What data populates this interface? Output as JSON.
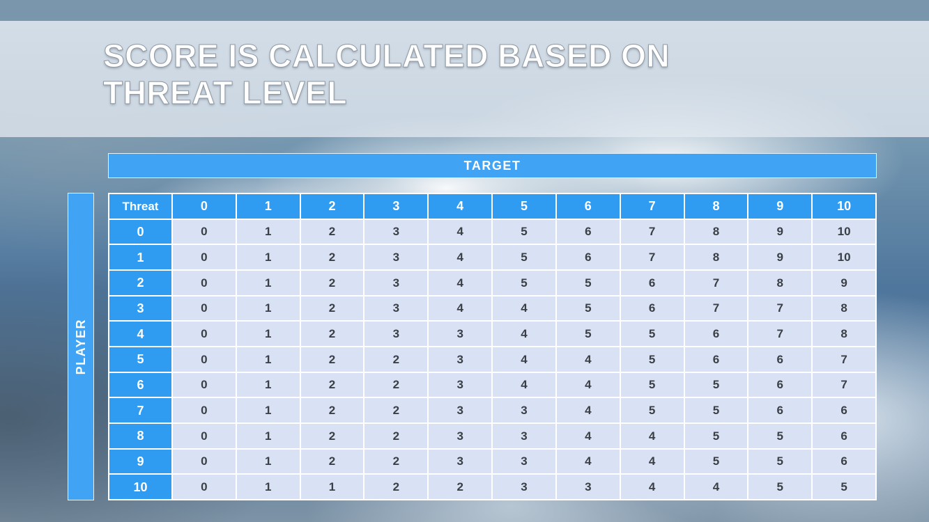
{
  "slide": {
    "title_line1": "SCORE IS CALCULATED BASED ON",
    "title_line2": "THREAT LEVEL"
  },
  "matrix": {
    "target_label": "TARGET",
    "player_label": "PLAYER",
    "corner_label": "Threat",
    "column_headers": [
      "0",
      "1",
      "2",
      "3",
      "4",
      "5",
      "6",
      "7",
      "8",
      "9",
      "10"
    ],
    "rows": [
      {
        "header": "0",
        "values": [
          "0",
          "1",
          "2",
          "3",
          "4",
          "5",
          "6",
          "7",
          "8",
          "9",
          "10"
        ]
      },
      {
        "header": "1",
        "values": [
          "0",
          "1",
          "2",
          "3",
          "4",
          "5",
          "6",
          "7",
          "8",
          "9",
          "10"
        ]
      },
      {
        "header": "2",
        "values": [
          "0",
          "1",
          "2",
          "3",
          "4",
          "5",
          "5",
          "6",
          "7",
          "8",
          "9"
        ]
      },
      {
        "header": "3",
        "values": [
          "0",
          "1",
          "2",
          "3",
          "4",
          "4",
          "5",
          "6",
          "7",
          "7",
          "8"
        ]
      },
      {
        "header": "4",
        "values": [
          "0",
          "1",
          "2",
          "3",
          "3",
          "4",
          "5",
          "5",
          "6",
          "7",
          "8"
        ]
      },
      {
        "header": "5",
        "values": [
          "0",
          "1",
          "2",
          "2",
          "3",
          "4",
          "4",
          "5",
          "6",
          "6",
          "7"
        ]
      },
      {
        "header": "6",
        "values": [
          "0",
          "1",
          "2",
          "2",
          "3",
          "4",
          "4",
          "5",
          "5",
          "6",
          "7"
        ]
      },
      {
        "header": "7",
        "values": [
          "0",
          "1",
          "2",
          "2",
          "3",
          "3",
          "4",
          "5",
          "5",
          "6",
          "6"
        ]
      },
      {
        "header": "8",
        "values": [
          "0",
          "1",
          "2",
          "2",
          "3",
          "3",
          "4",
          "4",
          "5",
          "5",
          "6"
        ]
      },
      {
        "header": "9",
        "values": [
          "0",
          "1",
          "2",
          "2",
          "3",
          "3",
          "4",
          "4",
          "5",
          "5",
          "6"
        ]
      },
      {
        "header": "10",
        "values": [
          "0",
          "1",
          "1",
          "2",
          "2",
          "3",
          "3",
          "4",
          "4",
          "5",
          "5"
        ]
      }
    ]
  },
  "colors": {
    "accent_blue": "#2f9bf1",
    "target_bar_blue": "#41a3f3",
    "cell_bg": "#d9e2f4",
    "cell_text": "#3a3f46",
    "top_strip": "#7a96ac",
    "title_band": "rgba(226,232,239,0.78)",
    "grid_gap": "#ffffff"
  },
  "chart_data": {
    "type": "table",
    "title": "SCORE IS CALCULATED BASED ON THREAT LEVEL",
    "x_axis_label": "TARGET",
    "y_axis_label": "PLAYER",
    "corner_label": "Threat",
    "columns": [
      0,
      1,
      2,
      3,
      4,
      5,
      6,
      7,
      8,
      9,
      10
    ],
    "row_labels": [
      0,
      1,
      2,
      3,
      4,
      5,
      6,
      7,
      8,
      9,
      10
    ],
    "values": [
      [
        0,
        1,
        2,
        3,
        4,
        5,
        6,
        7,
        8,
        9,
        10
      ],
      [
        0,
        1,
        2,
        3,
        4,
        5,
        6,
        7,
        8,
        9,
        10
      ],
      [
        0,
        1,
        2,
        3,
        4,
        5,
        5,
        6,
        7,
        8,
        9
      ],
      [
        0,
        1,
        2,
        3,
        4,
        4,
        5,
        6,
        7,
        7,
        8
      ],
      [
        0,
        1,
        2,
        3,
        3,
        4,
        5,
        5,
        6,
        7,
        8
      ],
      [
        0,
        1,
        2,
        2,
        3,
        4,
        4,
        5,
        6,
        6,
        7
      ],
      [
        0,
        1,
        2,
        2,
        3,
        4,
        4,
        5,
        5,
        6,
        7
      ],
      [
        0,
        1,
        2,
        2,
        3,
        3,
        4,
        5,
        5,
        6,
        6
      ],
      [
        0,
        1,
        2,
        2,
        3,
        3,
        4,
        4,
        5,
        5,
        6
      ],
      [
        0,
        1,
        2,
        2,
        3,
        3,
        4,
        4,
        5,
        5,
        6
      ],
      [
        0,
        1,
        1,
        2,
        2,
        3,
        3,
        4,
        4,
        5,
        5
      ]
    ]
  }
}
